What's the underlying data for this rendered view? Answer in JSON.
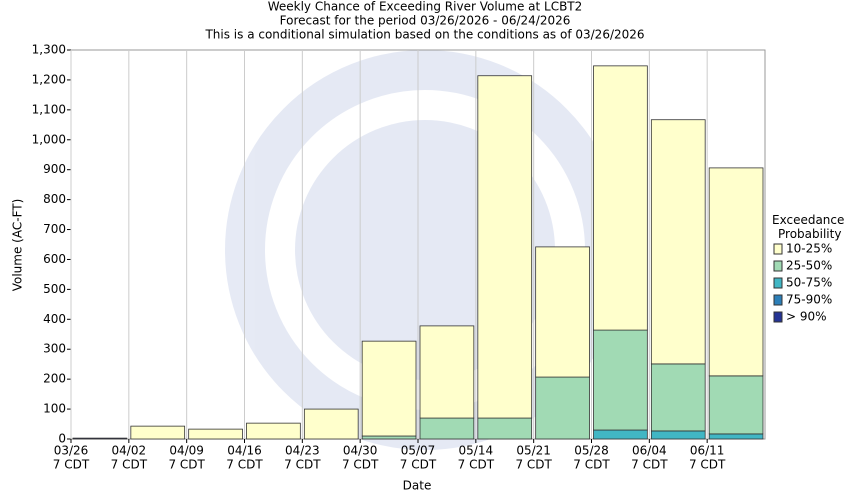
{
  "chart_data": {
    "type": "stacked_bar",
    "title": "Weekly Chance of Exceeding River Volume at LCBT2",
    "subtitle": "Forecast for the period 03/26/2026 - 06/24/2026",
    "note": "This is a conditional simulation based on the conditions as of 03/26/2026",
    "x_label": "Date",
    "y_label": "Volume (AC-FT)",
    "time_label": "7 CDT",
    "legend_title": "Exceedance Probability",
    "categories": [
      "03/26",
      "04/02",
      "04/09",
      "04/16",
      "04/23",
      "04/30",
      "05/07",
      "05/14",
      "05/21",
      "05/28",
      "06/04",
      "06/11"
    ],
    "series": [
      {
        "name": "10-25%",
        "color": "#ffffcc",
        "values": [
          0,
          43,
          33,
          53,
          100,
          317,
          308,
          1144,
          435,
          883,
          816,
          695
        ]
      },
      {
        "name": "25-50%",
        "color": "#a1dab4",
        "values": [
          0,
          0,
          0,
          0,
          0,
          10,
          70,
          70,
          207,
          334,
          224,
          194
        ]
      },
      {
        "name": "50-75%",
        "color": "#41b6c4",
        "values": [
          0,
          0,
          0,
          0,
          0,
          0,
          0,
          0,
          0,
          30,
          27,
          17
        ]
      },
      {
        "name": "75-90%",
        "color": "#2c7fb8",
        "values": [
          0,
          0,
          0,
          0,
          0,
          0,
          0,
          0,
          0,
          0,
          0,
          0
        ]
      },
      {
        "name": "> 90%",
        "color": "#253494",
        "values": [
          3,
          0,
          0,
          0,
          0,
          0,
          0,
          0,
          0,
          0,
          0,
          0
        ]
      }
    ],
    "ylim": [
      0,
      1300
    ],
    "yticks": [
      0,
      100,
      200,
      300,
      400,
      500,
      600,
      700,
      800,
      900,
      {
        "value": 1000,
        "label": "1,000"
      },
      {
        "value": 1100,
        "label": "1,100"
      },
      {
        "value": 1200,
        "label": "1,200"
      },
      {
        "value": 1300,
        "label": "1,300"
      }
    ],
    "grid": true
  }
}
